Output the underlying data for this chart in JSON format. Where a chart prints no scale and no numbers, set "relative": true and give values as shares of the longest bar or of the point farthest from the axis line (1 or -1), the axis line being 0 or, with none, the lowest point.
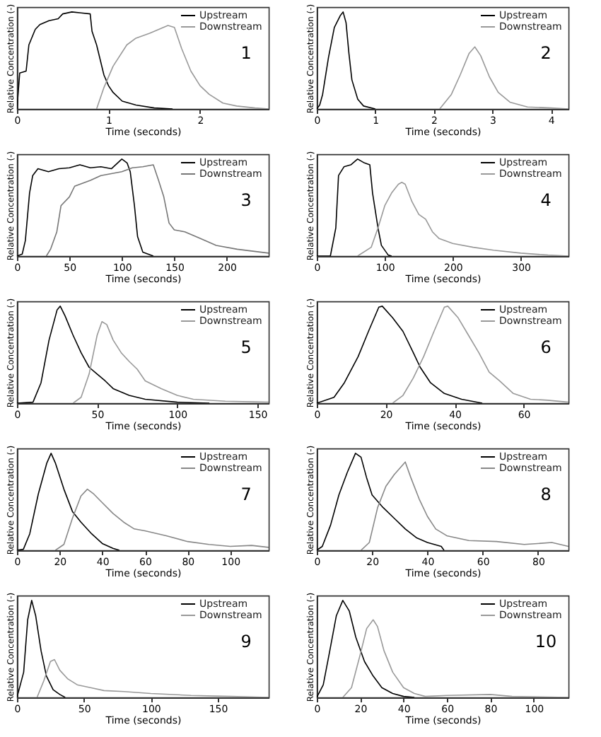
{
  "chart_data": [
    {
      "type": "line",
      "relative": true,
      "xlabel": "Time (seconds)",
      "ylabel": "Relative Concentration (-)",
      "xlim": [
        0,
        2.75
      ],
      "xticks": [
        0,
        1,
        2
      ],
      "legend": "top right",
      "annotations": [
        "1"
      ],
      "series": [
        {
          "name": "Upstream",
          "color": "#000000",
          "x": [
            0,
            0.03,
            0.1,
            0.13,
            0.2,
            0.25,
            0.35,
            0.45,
            0.5,
            0.6,
            0.7,
            0.8,
            0.82,
            0.87,
            0.95,
            1.0,
            1.05,
            1.15,
            1.3,
            1.5,
            1.7
          ],
          "values": [
            0,
            0.37,
            0.39,
            0.66,
            0.82,
            0.87,
            0.91,
            0.93,
            0.98,
            1.0,
            0.99,
            0.98,
            0.8,
            0.66,
            0.35,
            0.24,
            0.17,
            0.08,
            0.04,
            0.01,
            0
          ]
        },
        {
          "name": "Downstream",
          "color": "#999999",
          "x": [
            0.87,
            0.95,
            1.05,
            1.2,
            1.3,
            1.45,
            1.55,
            1.65,
            1.72,
            1.8,
            1.9,
            2.0,
            2.1,
            2.25,
            2.4,
            2.6,
            2.75
          ],
          "values": [
            0,
            0.22,
            0.44,
            0.66,
            0.73,
            0.78,
            0.82,
            0.86,
            0.84,
            0.62,
            0.39,
            0.24,
            0.15,
            0.06,
            0.03,
            0.01,
            0
          ]
        }
      ]
    },
    {
      "type": "line",
      "relative": true,
      "xlabel": "Time (seconds)",
      "ylabel": "Relative Concentration (-)",
      "xlim": [
        0,
        4.3
      ],
      "xticks": [
        0,
        1,
        2,
        3,
        4
      ],
      "legend": "top right",
      "annotations": [
        "2"
      ],
      "series": [
        {
          "name": "Upstream",
          "color": "#000000",
          "x": [
            0,
            0.05,
            0.1,
            0.2,
            0.3,
            0.4,
            0.45,
            0.5,
            0.55,
            0.6,
            0.7,
            0.8,
            1.0
          ],
          "values": [
            0,
            0.04,
            0.15,
            0.53,
            0.84,
            0.96,
            1.0,
            0.89,
            0.57,
            0.3,
            0.1,
            0.03,
            0
          ]
        },
        {
          "name": "Downstream",
          "color": "#999999",
          "x": [
            2.1,
            2.3,
            2.45,
            2.6,
            2.7,
            2.8,
            2.95,
            3.1,
            3.3,
            3.6,
            4.0,
            4.3
          ],
          "values": [
            0,
            0.15,
            0.35,
            0.57,
            0.64,
            0.55,
            0.33,
            0.17,
            0.07,
            0.02,
            0.01,
            0
          ]
        }
      ]
    },
    {
      "type": "line",
      "relative": true,
      "xlabel": "Time (seconds)",
      "ylabel": "Relative Concentration (-)",
      "xlim": [
        0,
        240
      ],
      "xticks": [
        0,
        50,
        100,
        150,
        200
      ],
      "legend": "top right",
      "annotations": [
        "3"
      ],
      "series": [
        {
          "name": "Upstream",
          "color": "#000000",
          "x": [
            0,
            5,
            8,
            12,
            15,
            20,
            30,
            40,
            50,
            60,
            70,
            80,
            90,
            100,
            105,
            108,
            112,
            115,
            120,
            130
          ],
          "values": [
            0,
            0.02,
            0.16,
            0.65,
            0.83,
            0.9,
            0.87,
            0.9,
            0.91,
            0.94,
            0.91,
            0.92,
            0.9,
            1.0,
            0.96,
            0.87,
            0.52,
            0.2,
            0.04,
            0
          ]
        },
        {
          "name": "Downstream",
          "color": "#777777",
          "x": [
            28,
            32,
            38,
            42,
            50,
            55,
            60,
            70,
            80,
            90,
            100,
            110,
            120,
            130,
            135,
            140,
            145,
            150,
            160,
            175,
            190,
            210,
            240
          ],
          "values": [
            0,
            0.07,
            0.25,
            0.52,
            0.61,
            0.72,
            0.74,
            0.78,
            0.83,
            0.85,
            0.87,
            0.91,
            0.92,
            0.94,
            0.78,
            0.61,
            0.34,
            0.27,
            0.25,
            0.18,
            0.11,
            0.07,
            0.03
          ]
        }
      ]
    },
    {
      "type": "line",
      "relative": true,
      "xlabel": "Time (seconds)",
      "ylabel": "Relative Concentration (-)",
      "xlim": [
        0,
        370
      ],
      "xticks": [
        0,
        100,
        200,
        300
      ],
      "legend": "top right",
      "annotations": [
        "4"
      ],
      "series": [
        {
          "name": "Upstream",
          "color": "#000000",
          "x": [
            0,
            20,
            28,
            32,
            40,
            50,
            60,
            70,
            78,
            82,
            90,
            95,
            105,
            110
          ],
          "values": [
            0,
            0,
            0.29,
            0.83,
            0.92,
            0.94,
            1.0,
            0.96,
            0.94,
            0.65,
            0.29,
            0.11,
            0.01,
            0
          ]
        },
        {
          "name": "Downstream",
          "color": "#999999",
          "x": [
            60,
            80,
            90,
            100,
            110,
            120,
            125,
            130,
            140,
            150,
            160,
            170,
            180,
            200,
            230,
            260,
            300,
            340,
            370
          ],
          "values": [
            0,
            0.09,
            0.29,
            0.52,
            0.65,
            0.74,
            0.76,
            0.74,
            0.56,
            0.43,
            0.38,
            0.25,
            0.18,
            0.13,
            0.09,
            0.06,
            0.03,
            0.01,
            0
          ]
        }
      ]
    },
    {
      "type": "line",
      "relative": true,
      "xlabel": "Time (seconds)",
      "ylabel": "Relative Concentration (-)",
      "xlim": [
        0,
        157
      ],
      "xticks": [
        0,
        50,
        100,
        150
      ],
      "legend": "top right",
      "annotations": [
        "5"
      ],
      "series": [
        {
          "name": "Upstream",
          "color": "#000000",
          "x": [
            0,
            10,
            15,
            20,
            25,
            27,
            30,
            35,
            40,
            45,
            50,
            55,
            60,
            70,
            80,
            100,
            120
          ],
          "values": [
            0,
            0.01,
            0.21,
            0.65,
            0.96,
            1.0,
            0.9,
            0.7,
            0.52,
            0.37,
            0.3,
            0.23,
            0.15,
            0.08,
            0.04,
            0.01,
            0
          ]
        },
        {
          "name": "Downstream",
          "color": "#999999",
          "x": [
            35,
            40,
            45,
            50,
            53,
            56,
            60,
            65,
            70,
            75,
            80,
            90,
            100,
            110,
            130,
            157
          ],
          "values": [
            0,
            0.06,
            0.3,
            0.7,
            0.84,
            0.81,
            0.65,
            0.52,
            0.43,
            0.35,
            0.23,
            0.15,
            0.08,
            0.04,
            0.02,
            0.01
          ]
        }
      ]
    },
    {
      "type": "line",
      "relative": true,
      "xlabel": "Time (seconds)",
      "ylabel": "Relative Concentration (-)",
      "xlim": [
        0,
        73
      ],
      "xticks": [
        0,
        20,
        40,
        60
      ],
      "legend": "top right",
      "annotations": [
        "6"
      ],
      "series": [
        {
          "name": "Upstream",
          "color": "#000000",
          "x": [
            0,
            5,
            8,
            12,
            15,
            18,
            19,
            22,
            25,
            28,
            30,
            33,
            37,
            42,
            48
          ],
          "values": [
            0,
            0.06,
            0.21,
            0.48,
            0.74,
            0.99,
            1.0,
            0.88,
            0.74,
            0.52,
            0.37,
            0.21,
            0.1,
            0.04,
            0
          ]
        },
        {
          "name": "Downstream",
          "color": "#999999",
          "x": [
            22,
            25,
            28,
            31,
            34,
            37,
            38,
            41,
            44,
            47,
            50,
            53,
            57,
            62,
            67,
            73
          ],
          "values": [
            0,
            0.08,
            0.26,
            0.48,
            0.74,
            0.99,
            1.0,
            0.88,
            0.7,
            0.52,
            0.32,
            0.23,
            0.1,
            0.04,
            0.03,
            0.01
          ]
        }
      ]
    },
    {
      "type": "line",
      "relative": true,
      "xlabel": "Time (seconds)",
      "ylabel": "Relative Concentration (-)",
      "xlim": [
        0,
        118
      ],
      "xticks": [
        0,
        20,
        40,
        60,
        80,
        100
      ],
      "legend": "top right",
      "annotations": [
        "7"
      ],
      "series": [
        {
          "name": "Upstream",
          "color": "#000000",
          "x": [
            0,
            3,
            6,
            10,
            14,
            16,
            18,
            22,
            26,
            30,
            35,
            40,
            45,
            48
          ],
          "values": [
            0,
            0.01,
            0.17,
            0.58,
            0.9,
            1.0,
            0.9,
            0.63,
            0.4,
            0.29,
            0.17,
            0.07,
            0.02,
            0
          ]
        },
        {
          "name": "Downstream",
          "color": "#888888",
          "x": [
            18,
            22,
            26,
            30,
            33,
            36,
            40,
            45,
            50,
            55,
            60,
            70,
            80,
            90,
            100,
            110,
            118
          ],
          "values": [
            0,
            0.06,
            0.33,
            0.56,
            0.63,
            0.58,
            0.49,
            0.38,
            0.29,
            0.22,
            0.2,
            0.15,
            0.09,
            0.06,
            0.04,
            0.05,
            0.03
          ]
        }
      ]
    },
    {
      "type": "line",
      "relative": true,
      "xlabel": "Time (seconds)",
      "ylabel": "Relative Concentration (-)",
      "xlim": [
        0,
        91
      ],
      "xticks": [
        0,
        20,
        40,
        60,
        80
      ],
      "legend": "top right",
      "annotations": [
        "8"
      ],
      "series": [
        {
          "name": "Upstream",
          "color": "#000000",
          "x": [
            0,
            2,
            5,
            8,
            11,
            14,
            16,
            18,
            20,
            24,
            28,
            32,
            36,
            40,
            45,
            46
          ],
          "values": [
            0,
            0.04,
            0.26,
            0.57,
            0.8,
            1.0,
            0.96,
            0.75,
            0.57,
            0.44,
            0.33,
            0.22,
            0.13,
            0.08,
            0.04,
            0
          ]
        },
        {
          "name": "Downstream",
          "color": "#888888",
          "x": [
            16,
            19,
            22,
            25,
            28,
            32,
            34,
            37,
            40,
            43,
            47,
            55,
            65,
            75,
            85,
            91
          ],
          "values": [
            0,
            0.08,
            0.44,
            0.66,
            0.78,
            0.91,
            0.75,
            0.53,
            0.35,
            0.22,
            0.15,
            0.1,
            0.09,
            0.06,
            0.08,
            0.04
          ]
        }
      ]
    },
    {
      "type": "line",
      "relative": true,
      "xlabel": "Time (seconds)",
      "ylabel": "Relative Concentration (-)",
      "xlim": [
        0,
        188
      ],
      "xticks": [
        0,
        50,
        100,
        150
      ],
      "legend": "top right",
      "annotations": [
        "9"
      ],
      "series": [
        {
          "name": "Upstream",
          "color": "#000000",
          "x": [
            0,
            5,
            8,
            11,
            14,
            18,
            22,
            27,
            32,
            36
          ],
          "values": [
            0,
            0.26,
            0.8,
            1.0,
            0.84,
            0.48,
            0.22,
            0.08,
            0.03,
            0
          ]
        },
        {
          "name": "Downstream",
          "color": "#999999",
          "x": [
            15,
            20,
            25,
            28,
            32,
            38,
            45,
            55,
            65,
            80,
            100,
            130,
            160,
            188
          ],
          "values": [
            0,
            0.17,
            0.37,
            0.39,
            0.28,
            0.19,
            0.13,
            0.1,
            0.07,
            0.06,
            0.04,
            0.02,
            0.01,
            0
          ]
        }
      ]
    },
    {
      "type": "line",
      "relative": true,
      "xlabel": "Time (seconds)",
      "ylabel": "Relative Concentration (-)",
      "xlim": [
        0,
        116
      ],
      "xticks": [
        0,
        20,
        40,
        60,
        80,
        100
      ],
      "legend": "top right",
      "annotations": [
        "10"
      ],
      "series": [
        {
          "name": "Upstream",
          "color": "#000000",
          "x": [
            0,
            3,
            6,
            9,
            12,
            15,
            18,
            22,
            26,
            30,
            35,
            40,
            45
          ],
          "values": [
            0,
            0.13,
            0.48,
            0.84,
            1.0,
            0.89,
            0.62,
            0.37,
            0.22,
            0.1,
            0.04,
            0.01,
            0
          ]
        },
        {
          "name": "Downstream",
          "color": "#999999",
          "x": [
            12,
            16,
            20,
            23,
            26,
            28,
            31,
            35,
            40,
            45,
            50,
            60,
            80,
            90,
            116
          ],
          "values": [
            0,
            0.1,
            0.44,
            0.71,
            0.8,
            0.73,
            0.48,
            0.26,
            0.1,
            0.04,
            0.01,
            0.02,
            0.03,
            0.01,
            0
          ]
        }
      ]
    }
  ]
}
